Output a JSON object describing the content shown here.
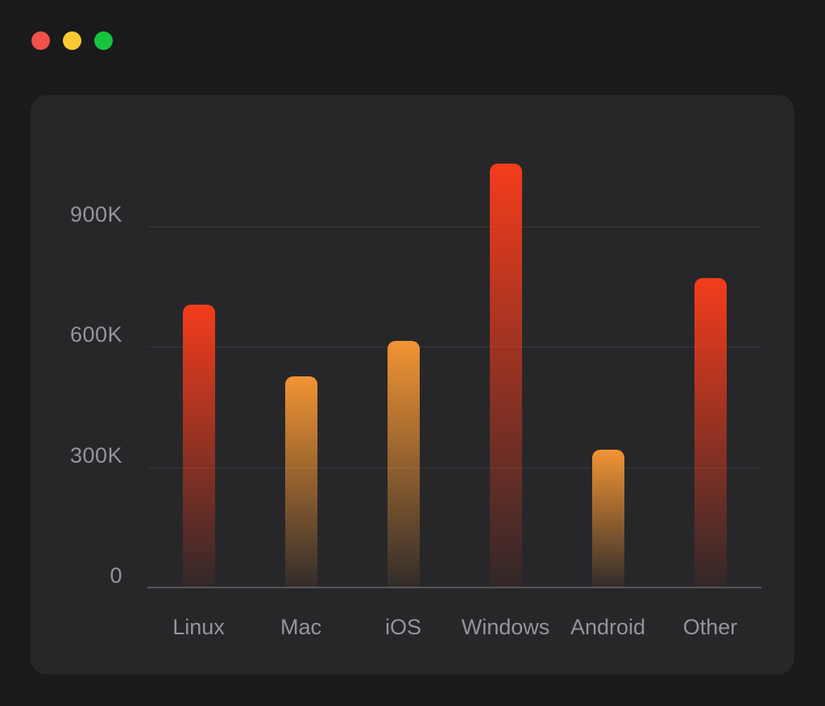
{
  "window": {
    "controls": [
      {
        "name": "close",
        "color": "#f0504a"
      },
      {
        "name": "minimize",
        "color": "#f9ca32"
      },
      {
        "name": "maximize",
        "color": "#16c53d"
      }
    ]
  },
  "theme": {
    "page_bg": "#1a1a1c",
    "card_bg": "#27272a",
    "grid_color": "#3a3a3e",
    "axis_color": "#56565b",
    "label_color": "#95959a",
    "accent_red": "#f43c1c",
    "accent_orange": "#f29433"
  },
  "chart_data": {
    "type": "bar",
    "title": "",
    "xlabel": "",
    "ylabel": "",
    "categories": [
      "Linux",
      "Mac",
      "iOS",
      "Windows",
      "Android",
      "Other"
    ],
    "values": [
      705000,
      525000,
      615000,
      1055000,
      343000,
      770000
    ],
    "bar_colors": [
      "#f43c1c",
      "#f29433",
      "#f29433",
      "#f43c1c",
      "#f29433",
      "#f43c1c"
    ],
    "bar_gradient": "vertical fade from bar color at top to near-transparent at bottom",
    "y_ticks": [
      {
        "label": "0",
        "value": 0
      },
      {
        "label": "300K",
        "value": 300000
      },
      {
        "label": "600K",
        "value": 600000
      },
      {
        "label": "900K",
        "value": 900000
      }
    ],
    "ylim": [
      0,
      1100000
    ],
    "grid": true,
    "legend": false
  }
}
